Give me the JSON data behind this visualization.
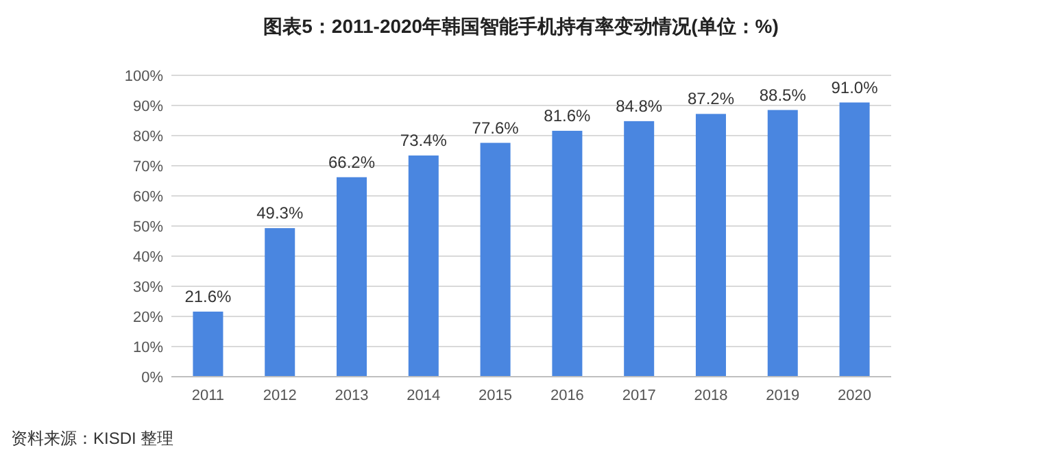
{
  "chart_data": {
    "type": "bar",
    "title": "图表5：2011-2020年韩国智能手机持有率变动情况(单位：%)",
    "categories": [
      "2011",
      "2012",
      "2013",
      "2014",
      "2015",
      "2016",
      "2017",
      "2018",
      "2019",
      "2020"
    ],
    "values": [
      21.6,
      49.3,
      66.2,
      73.4,
      77.6,
      81.6,
      84.8,
      87.2,
      88.5,
      91.0
    ],
    "value_labels": [
      "21.6%",
      "49.3%",
      "66.2%",
      "73.4%",
      "77.6%",
      "81.6%",
      "84.8%",
      "87.2%",
      "88.5%",
      "91.0%"
    ],
    "color": "#4a86e0",
    "ylim": [
      0,
      100
    ],
    "yticks": [
      {
        "value": 0,
        "label": "0%"
      },
      {
        "value": 10,
        "label": "10%"
      },
      {
        "value": 20,
        "label": "20%"
      },
      {
        "value": 30,
        "label": "30%"
      },
      {
        "value": 40,
        "label": "40%"
      },
      {
        "value": 50,
        "label": "50%"
      },
      {
        "value": 60,
        "label": "60%"
      },
      {
        "value": 70,
        "label": "70%"
      },
      {
        "value": 80,
        "label": "80%"
      },
      {
        "value": 90,
        "label": "90%"
      },
      {
        "value": 100,
        "label": "100%"
      }
    ],
    "grid": "y",
    "annotations": [
      "资料来源：KISDI 整理"
    ]
  }
}
